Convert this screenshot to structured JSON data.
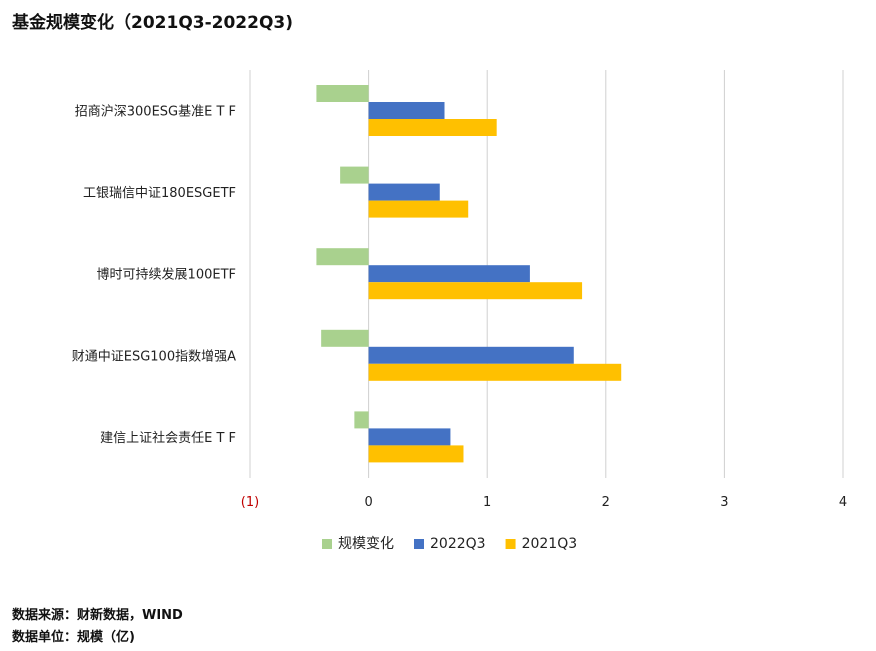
{
  "chart_data": {
    "type": "bar",
    "orientation": "horizontal",
    "title": "基金规模变化（2021Q3-2022Q3)",
    "categories": [
      "招商沪深300ESG基准E T F",
      "工银瑞信中证180ESGETF",
      "博时可持续发展100ETF",
      "财通中证ESG100指数增强A",
      "建信上证社会责任E T F"
    ],
    "series": [
      {
        "name": "规模变化",
        "color": "#a9d18e",
        "values": [
          -0.44,
          -0.24,
          -0.44,
          -0.4,
          -0.12
        ]
      },
      {
        "name": "2022Q3",
        "color": "#4472c4",
        "values": [
          0.64,
          0.6,
          1.36,
          1.73,
          0.69
        ]
      },
      {
        "name": "2021Q3",
        "color": "#ffc000",
        "values": [
          1.08,
          0.84,
          1.8,
          2.13,
          0.8
        ]
      }
    ],
    "xlim": [
      -1,
      4
    ],
    "xticks": [
      {
        "value": -1,
        "label": "(1)",
        "color": "#c00000"
      },
      {
        "value": 0,
        "label": "0",
        "color": "#222222"
      },
      {
        "value": 1,
        "label": "1",
        "color": "#222222"
      },
      {
        "value": 2,
        "label": "2",
        "color": "#222222"
      },
      {
        "value": 3,
        "label": "3",
        "color": "#222222"
      },
      {
        "value": 4,
        "label": "4",
        "color": "#222222"
      }
    ],
    "grid": true,
    "legend": "bottom"
  },
  "footer": {
    "source": "数据来源：财新数据，WIND",
    "unit": "数据单位：规模（亿)"
  }
}
